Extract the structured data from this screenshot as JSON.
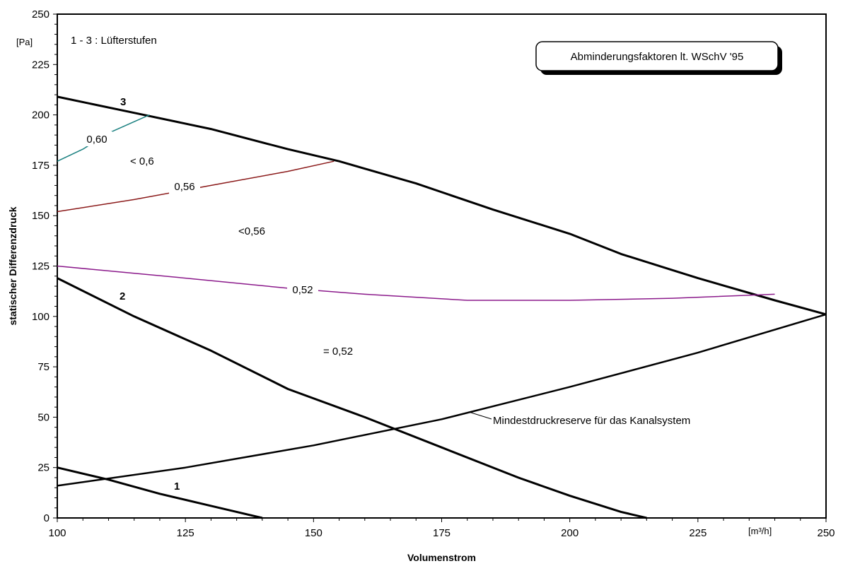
{
  "chart_data": {
    "type": "line",
    "xlabel": "Volumenstrom",
    "ylabel": "statischer Differenzdruck",
    "x_unit": "[m³/h]",
    "y_unit": "[Pa]",
    "xlim": [
      100,
      250
    ],
    "ylim": [
      0,
      250
    ],
    "x_ticks": [
      100,
      125,
      150,
      175,
      200,
      225,
      250
    ],
    "y_ticks": [
      0,
      25,
      50,
      75,
      100,
      125,
      150,
      175,
      200,
      225,
      250
    ],
    "grid": false,
    "legend_note": "1 - 3 : Lüfterstufen",
    "boxed_note": "Abminderungsfaktoren lt. WSchV '95",
    "region_labels": [
      "< 0,6",
      "<0,56",
      "= 0,52"
    ],
    "series": [
      {
        "name": "1",
        "color": "#000000",
        "x": [
          100,
          110,
          120,
          130,
          135,
          140
        ],
        "y": [
          25,
          19,
          12,
          6,
          3,
          0
        ]
      },
      {
        "name": "2",
        "color": "#000000",
        "x": [
          100,
          115,
          130,
          145,
          160,
          175,
          190,
          200,
          210,
          215
        ],
        "y": [
          119,
          100,
          83,
          64,
          50,
          35,
          20,
          11,
          3,
          0
        ]
      },
      {
        "name": "3",
        "color": "#000000",
        "x": [
          100,
          115,
          130,
          145,
          155,
          170,
          185,
          200,
          210,
          225,
          240,
          250
        ],
        "y": [
          209,
          201,
          193,
          183,
          177,
          166,
          153,
          141,
          131,
          119,
          108,
          101
        ]
      },
      {
        "name": "Mindestdruckreserve für das Kanalsystem",
        "color": "#000000",
        "x": [
          100,
          125,
          150,
          175,
          200,
          225,
          250
        ],
        "y": [
          16,
          25,
          36,
          49,
          65,
          82,
          101
        ]
      },
      {
        "name": "0,60",
        "color": "#1a8080",
        "x": [
          100,
          105,
          110,
          118
        ],
        "y": [
          177,
          183,
          191,
          200
        ]
      },
      {
        "name": "0,56",
        "color": "#8b1a1a",
        "x": [
          100,
          115,
          130,
          145,
          154
        ],
        "y": [
          152,
          158,
          165,
          172,
          177
        ]
      },
      {
        "name": "0,52",
        "color": "#8b1a8b",
        "x": [
          100,
          125,
          145,
          160,
          180,
          200,
          220,
          240
        ],
        "y": [
          125,
          119,
          114,
          111,
          108,
          108,
          109,
          111
        ]
      }
    ]
  }
}
